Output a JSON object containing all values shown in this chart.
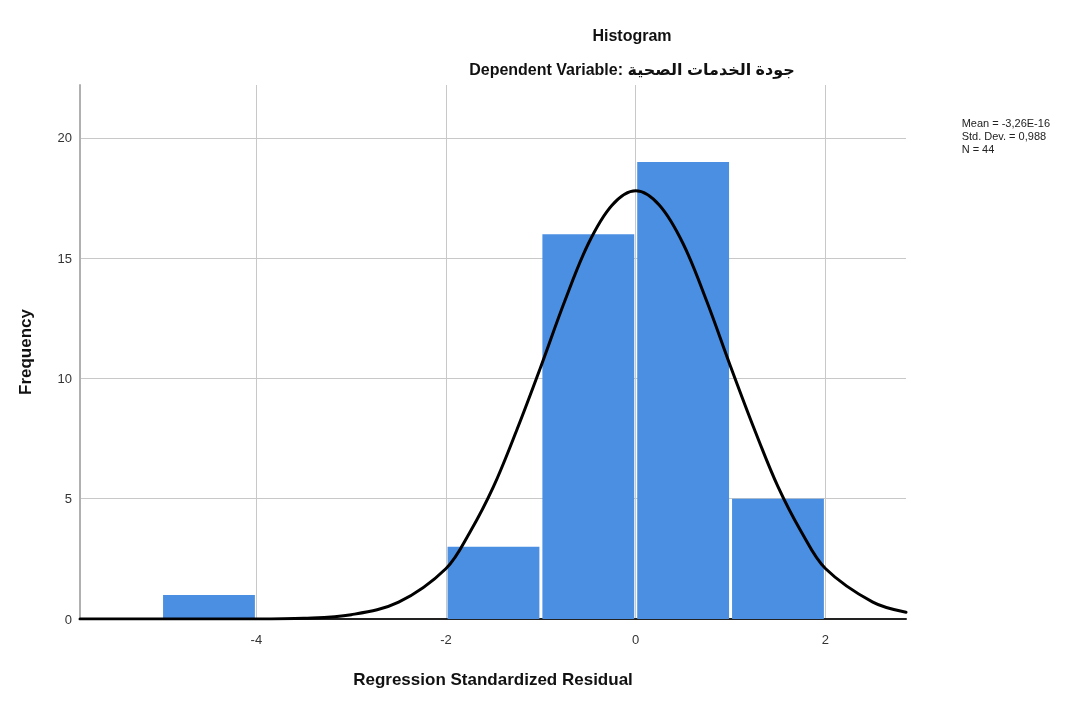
{
  "chart_data": {
    "type": "histogram",
    "title": "Histogram",
    "subtitle": "Dependent Variable: جودة الخدمات الصحية",
    "xlabel": "Regression Standardized Residual",
    "ylabel": "Frequency",
    "xlim": [
      -5.86,
      2.85
    ],
    "xticks": [
      -4,
      -2,
      0,
      2
    ],
    "ylim": [
      0,
      22.2
    ],
    "yticks": [
      0,
      5,
      10,
      15,
      20
    ],
    "grid": true,
    "marker": "none",
    "line_style": "solid",
    "annotations": [
      "Mean = -3,26E-16",
      "Std. Dev. = 0,988",
      "N = 44"
    ],
    "series": [
      {
        "color": "#4a8fe2",
        "bins": [
          -5,
          -4,
          -3,
          -2,
          -1,
          0,
          1,
          2
        ],
        "values": [
          1,
          0,
          0,
          3,
          16,
          19,
          5
        ]
      },
      {
        "type": "line",
        "color": "#000000",
        "x": [
          -5.86,
          -5,
          -4,
          -3.5,
          -3,
          -2.5,
          -2,
          -1.75,
          -1.5,
          -1.25,
          -1,
          -0.75,
          -0.5,
          -0.25,
          0,
          0.25,
          0.5,
          0.75,
          1,
          1.25,
          1.5,
          1.75,
          2,
          2.5,
          2.85
        ],
        "values": [
          0,
          0,
          0,
          0.03,
          0.18,
          0.7,
          2.1,
          3.6,
          5.5,
          7.9,
          10.5,
          13.2,
          15.6,
          17.2,
          17.8,
          17.2,
          15.6,
          13.2,
          10.5,
          7.9,
          5.5,
          3.6,
          2.1,
          0.7,
          0.28
        ]
      }
    ]
  }
}
